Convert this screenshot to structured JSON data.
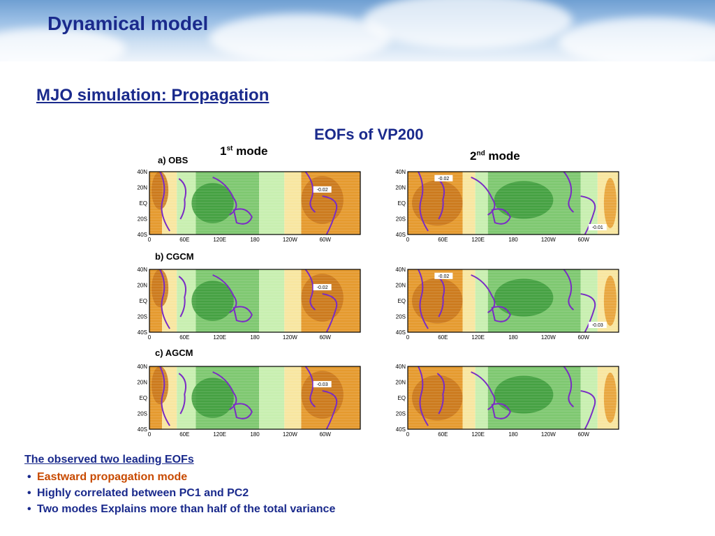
{
  "slide": {
    "title": "Dynamical model"
  },
  "subtitle": "MJO simulation: Propagation",
  "figure": {
    "title": "EOFs of VP200",
    "columns": [
      {
        "num": "1",
        "sup": "st",
        "word": "mode"
      },
      {
        "num": "2",
        "sup": "nd",
        "word": "mode"
      }
    ],
    "rows": [
      {
        "label": "a) OBS"
      },
      {
        "label": "b) CGCM"
      },
      {
        "label": "c) AGCM"
      }
    ],
    "lat_ticks": [
      "40N",
      "20N",
      "EQ",
      "20S",
      "40S"
    ],
    "lon_ticks": [
      "0",
      "60E",
      "120E",
      "180",
      "120W",
      "60W"
    ],
    "panels": [
      {
        "annotations": [
          "-0.02"
        ]
      },
      {
        "annotations": [
          "-0.02",
          "-0.01"
        ]
      },
      {
        "annotations": [
          "-0.02"
        ]
      },
      {
        "annotations": [
          "-0.02",
          "-0.03"
        ]
      },
      {
        "annotations": [
          "-0.03"
        ]
      },
      {
        "annotations": []
      }
    ],
    "colors": {
      "orange": "#e59a2e",
      "orange_dark": "#c8741a",
      "green": "#7ec870",
      "green_dark": "#3b9a3a",
      "pale_yellow": "#f8e6a0",
      "pale_green": "#c8efb0",
      "coast": "#7a2cc4"
    }
  },
  "notes": {
    "heading": "The observed two leading EOFs",
    "items": [
      {
        "text": "Eastward propagation mode",
        "color": "orange"
      },
      {
        "text": "Highly correlated between PC1 and PC2",
        "color": "blue"
      },
      {
        "text": "Two modes Explains more than half of the total variance",
        "color": "blue"
      }
    ]
  }
}
